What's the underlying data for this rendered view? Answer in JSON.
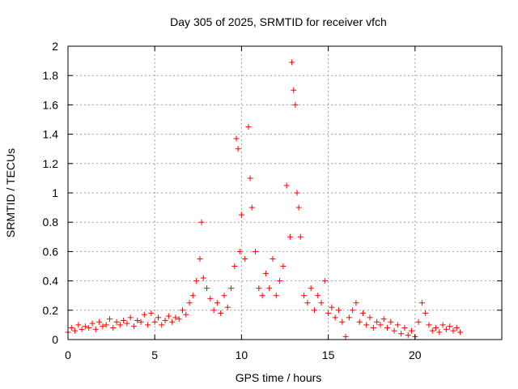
{
  "chart_data": {
    "type": "scatter",
    "title": "Day 305 of 2025, SRMTID for receiver vfch",
    "xlabel": "GPS time / hours",
    "ylabel": "SRMTID / TECUs",
    "xlim": [
      0,
      25
    ],
    "ylim": [
      0,
      2
    ],
    "xticks": [
      0,
      5,
      10,
      15,
      20
    ],
    "xtick_labels": [
      "0",
      "5",
      "10",
      "15",
      "20"
    ],
    "yticks": [
      0,
      0.2,
      0.4,
      0.6,
      0.8,
      1,
      1.2,
      1.4,
      1.6,
      1.8,
      2
    ],
    "ytick_labels": [
      "0",
      "0.2",
      "0.4",
      "0.6",
      "0.8",
      "1",
      "1.2",
      "1.4",
      "1.6",
      "1.8",
      "2"
    ],
    "grid": true,
    "marker": "+",
    "color": "#ff0000",
    "series": [
      {
        "name": "SRMTID",
        "x": [
          0.0,
          0.2,
          0.4,
          0.6,
          0.8,
          1.0,
          1.2,
          1.4,
          1.6,
          1.8,
          2.0,
          2.2,
          2.4,
          2.6,
          2.8,
          3.0,
          3.2,
          3.4,
          3.6,
          3.8,
          4.0,
          4.2,
          4.4,
          4.6,
          4.8,
          5.0,
          5.2,
          5.4,
          5.6,
          5.8,
          6.0,
          6.2,
          6.4,
          6.6,
          6.8,
          7.0,
          7.2,
          7.4,
          7.6,
          7.7,
          7.8,
          8.0,
          8.2,
          8.4,
          8.6,
          8.8,
          9.0,
          9.2,
          9.4,
          9.6,
          9.7,
          9.8,
          9.9,
          10.0,
          10.2,
          10.4,
          10.5,
          10.6,
          10.8,
          11.0,
          11.2,
          11.4,
          11.6,
          11.8,
          12.0,
          12.2,
          12.4,
          12.6,
          12.8,
          12.9,
          13.0,
          13.1,
          13.2,
          13.3,
          13.4,
          13.6,
          13.8,
          14.0,
          14.2,
          14.4,
          14.6,
          14.8,
          15.0,
          15.2,
          15.4,
          15.6,
          15.8,
          16.0,
          16.2,
          16.4,
          16.6,
          16.8,
          17.0,
          17.2,
          17.4,
          17.6,
          17.8,
          18.0,
          18.2,
          18.4,
          18.6,
          18.8,
          19.0,
          19.2,
          19.4,
          19.6,
          19.8,
          20.0,
          20.2,
          20.4,
          20.6,
          20.8,
          21.0,
          21.2,
          21.4,
          21.6,
          21.8,
          22.0,
          22.2,
          22.4,
          22.6
        ],
        "y": [
          0.05,
          0.08,
          0.06,
          0.1,
          0.07,
          0.09,
          0.08,
          0.11,
          0.07,
          0.12,
          0.09,
          0.1,
          0.14,
          0.08,
          0.12,
          0.1,
          0.13,
          0.11,
          0.15,
          0.09,
          0.13,
          0.12,
          0.17,
          0.1,
          0.18,
          0.12,
          0.15,
          0.1,
          0.13,
          0.16,
          0.12,
          0.15,
          0.14,
          0.2,
          0.17,
          0.25,
          0.3,
          0.4,
          0.55,
          0.8,
          0.42,
          0.35,
          0.28,
          0.2,
          0.25,
          0.18,
          0.3,
          0.22,
          0.35,
          0.5,
          1.37,
          1.3,
          0.6,
          0.85,
          0.55,
          1.45,
          1.1,
          0.9,
          0.6,
          0.35,
          0.3,
          0.45,
          0.35,
          0.55,
          0.3,
          0.4,
          0.5,
          1.05,
          0.7,
          1.89,
          1.7,
          1.6,
          1.0,
          0.9,
          0.7,
          0.3,
          0.25,
          0.35,
          0.2,
          0.3,
          0.25,
          0.4,
          0.18,
          0.22,
          0.15,
          0.2,
          0.12,
          0.02,
          0.15,
          0.2,
          0.25,
          0.12,
          0.18,
          0.1,
          0.15,
          0.08,
          0.12,
          0.1,
          0.14,
          0.08,
          0.12,
          0.06,
          0.1,
          0.04,
          0.08,
          0.03,
          0.06,
          0.02,
          0.12,
          0.25,
          0.18,
          0.1,
          0.06,
          0.08,
          0.05,
          0.1,
          0.07,
          0.09,
          0.06,
          0.08,
          0.05
        ]
      }
    ]
  }
}
